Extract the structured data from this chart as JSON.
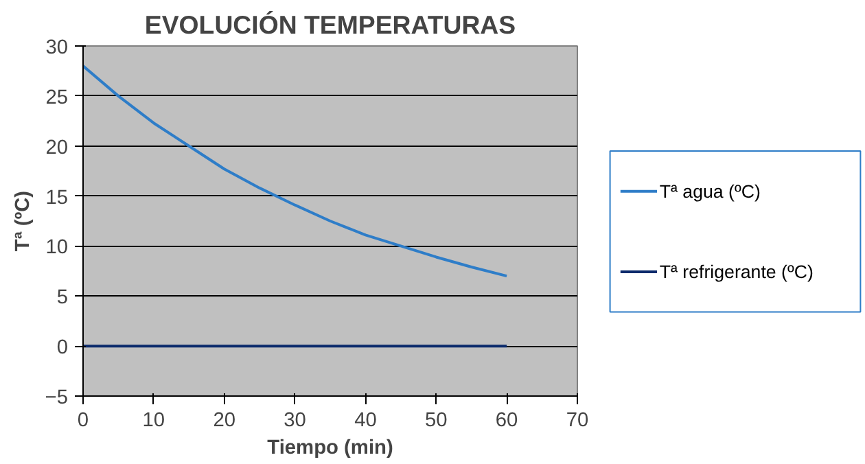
{
  "chart_data": {
    "type": "line",
    "title": "EVOLUCIÓN TEMPERATURAS",
    "xlabel": "Tiempo (min)",
    "ylabel": "Tª (ºC)",
    "x": [
      0,
      5,
      10,
      15,
      20,
      25,
      30,
      35,
      40,
      45,
      50,
      55,
      60
    ],
    "series": [
      {
        "name": "Tª agua (ºC)",
        "color": "#2e7dc8",
        "values": [
          28,
          25,
          22.3,
          20,
          17.7,
          15.8,
          14.1,
          12.5,
          11.1,
          10,
          8.9,
          7.9,
          7
        ]
      },
      {
        "name": "Tª refrigerante (ºC)",
        "color": "#0b2a6b",
        "values": [
          0,
          0,
          0,
          0,
          0,
          0,
          0,
          0,
          0,
          0,
          0,
          0,
          0
        ]
      }
    ],
    "xlim": [
      0,
      70
    ],
    "xticks": [
      0,
      10,
      20,
      30,
      40,
      50,
      60,
      70
    ],
    "ylim": [
      -5,
      30
    ],
    "yticks": [
      -5,
      0,
      5,
      10,
      15,
      20,
      25,
      30
    ],
    "grid": "y",
    "legend": "right",
    "marker": "none",
    "line_style": "solid"
  }
}
